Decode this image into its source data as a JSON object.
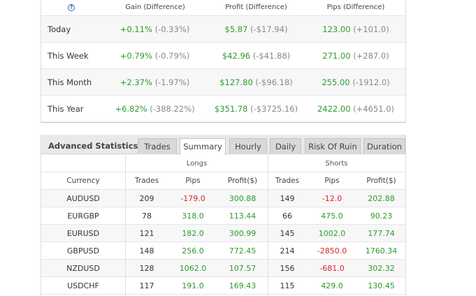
{
  "period_summary": {
    "headers": {
      "help_icon": "?",
      "gain": "Gain (Difference)",
      "profit": "Profit (Difference)",
      "pips": "Pips (Difference)"
    },
    "rows": [
      {
        "label": "Today",
        "gain": "+0.11%",
        "gain_diff": "(-0.33%)",
        "profit": "$5.87",
        "profit_diff": "(-$17.94)",
        "pips": "123.00",
        "pips_diff": "(+101.0)"
      },
      {
        "label": "This Week",
        "gain": "+0.79%",
        "gain_diff": "(-0.79%)",
        "profit": "$42.96",
        "profit_diff": "(-$41.88)",
        "pips": "271.00",
        "pips_diff": "(+287.0)"
      },
      {
        "label": "This Month",
        "gain": "+2.37%",
        "gain_diff": "(-1.97%)",
        "profit": "$127.80",
        "profit_diff": "(-$96.18)",
        "pips": "255.00",
        "pips_diff": "(-1912.0)"
      },
      {
        "label": "This Year",
        "gain": "+6.82%",
        "gain_diff": "(-388.22%)",
        "profit": "$351.78",
        "profit_diff": "(-$3725.16)",
        "pips": "2422.00",
        "pips_diff": "(+4651.0)"
      }
    ]
  },
  "advanced": {
    "title": "Advanced Statistics",
    "tabs": [
      {
        "label": "Trades",
        "active": false
      },
      {
        "label": "Summary",
        "active": true
      },
      {
        "label": "Hourly",
        "active": false
      },
      {
        "label": "Daily",
        "active": false
      },
      {
        "label": "Risk Of Ruin",
        "active": false
      },
      {
        "label": "Duration",
        "active": false
      }
    ],
    "groups": {
      "longs": "Longs",
      "shorts": "Shorts"
    },
    "columns": {
      "currency": "Currency",
      "trades": "Trades",
      "pips": "Pips",
      "profit": "Profit($)"
    },
    "rows": [
      {
        "currency": "AUDUSD",
        "long_trades": "209",
        "long_pips": "-179.0",
        "long_profit": "300.88",
        "short_trades": "149",
        "short_pips": "-12.0",
        "short_profit": "202.88"
      },
      {
        "currency": "EURGBP",
        "long_trades": "78",
        "long_pips": "318.0",
        "long_profit": "113.44",
        "short_trades": "66",
        "short_pips": "475.0",
        "short_profit": "90.23"
      },
      {
        "currency": "EURUSD",
        "long_trades": "121",
        "long_pips": "182.0",
        "long_profit": "300.99",
        "short_trades": "145",
        "short_pips": "1002.0",
        "short_profit": "177.74"
      },
      {
        "currency": "GBPUSD",
        "long_trades": "148",
        "long_pips": "256.0",
        "long_profit": "772.45",
        "short_trades": "214",
        "short_pips": "-2850.0",
        "short_profit": "1760.34"
      },
      {
        "currency": "NZDUSD",
        "long_trades": "128",
        "long_pips": "1062.0",
        "long_profit": "107.57",
        "short_trades": "156",
        "short_pips": "-681.0",
        "short_profit": "302.32"
      },
      {
        "currency": "USDCHF",
        "long_trades": "117",
        "long_pips": "191.0",
        "long_profit": "169.43",
        "short_trades": "115",
        "short_pips": "429.0",
        "short_profit": "130.45"
      }
    ]
  },
  "colors": {
    "positive": "#2e9a2e",
    "negative": "#d9262b",
    "muted": "#888888"
  }
}
